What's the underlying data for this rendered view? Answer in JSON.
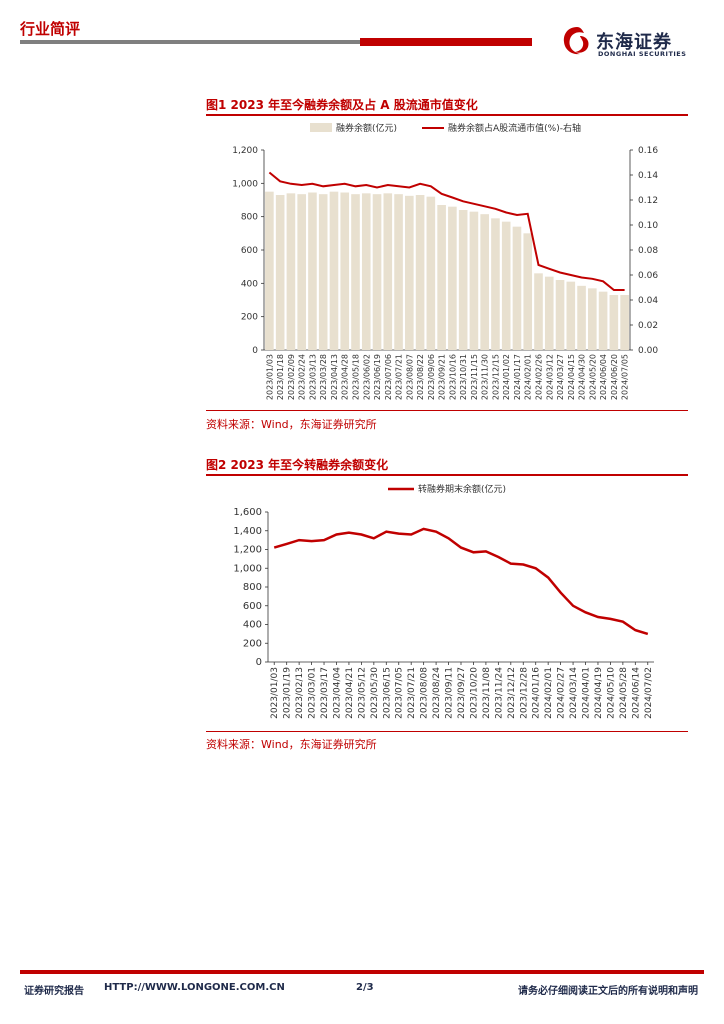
{
  "header": {
    "section": "行业简评",
    "logo_cn": "东海证券",
    "logo_en": "DONGHAI SECURITIES"
  },
  "figure1": {
    "title": "图1  2023 年至今融券余额及占 A 股流通市值变化",
    "source": "资料来源：Wind，东海证券研究所",
    "chart_data": {
      "type": "bar+line",
      "legend": [
        "融券余额(亿元)",
        "融券余额占A股流通市值(%)-右轴"
      ],
      "ylim_left": [
        0,
        1200
      ],
      "yticks_left": [
        "0",
        "200",
        "400",
        "600",
        "800",
        "1,000",
        "1,200"
      ],
      "ylim_right": [
        0,
        0.16
      ],
      "yticks_right": [
        "0.00",
        "0.02",
        "0.04",
        "0.06",
        "0.08",
        "0.10",
        "0.12",
        "0.14",
        "0.16"
      ],
      "x_ticks": [
        "2023/01/03",
        "2023/01/18",
        "2023/02/09",
        "2023/02/24",
        "2023/03/13",
        "2023/03/28",
        "2023/04/13",
        "2023/04/28",
        "2023/05/18",
        "2023/06/02",
        "2023/06/19",
        "2023/07/06",
        "2023/07/21",
        "2023/08/07",
        "2023/08/22",
        "2023/09/06",
        "2023/09/21",
        "2023/10/16",
        "2023/10/31",
        "2023/11/15",
        "2023/11/30",
        "2023/12/15",
        "2024/01/02",
        "2024/01/17",
        "2024/02/01",
        "2024/02/26",
        "2024/03/12",
        "2024/03/27",
        "2024/04/15",
        "2024/04/30",
        "2024/05/20",
        "2024/06/04",
        "2024/06/20",
        "2024/07/05"
      ],
      "series": [
        {
          "name": "融券余额(亿元)",
          "axis": "left",
          "values": [
            950,
            930,
            940,
            935,
            945,
            935,
            950,
            945,
            935,
            940,
            935,
            940,
            935,
            925,
            930,
            920,
            870,
            860,
            840,
            830,
            815,
            790,
            770,
            740,
            700,
            460,
            440,
            420,
            410,
            385,
            370,
            350,
            330,
            330
          ]
        },
        {
          "name": "融券余额占A股流通市值(%)-右轴",
          "axis": "right",
          "values": [
            0.142,
            0.135,
            0.133,
            0.132,
            0.133,
            0.131,
            0.132,
            0.133,
            0.131,
            0.132,
            0.13,
            0.132,
            0.131,
            0.13,
            0.133,
            0.131,
            0.125,
            0.122,
            0.119,
            0.117,
            0.115,
            0.113,
            0.11,
            0.108,
            0.109,
            0.068,
            0.065,
            0.062,
            0.06,
            0.058,
            0.057,
            0.055,
            0.048,
            0.048
          ]
        }
      ]
    }
  },
  "figure2": {
    "title": "图2  2023 年至今转融券余额变化",
    "source": "资料来源：Wind，东海证券研究所",
    "chart_data": {
      "type": "line",
      "legend": [
        "转融券期末余额(亿元)"
      ],
      "ylim": [
        0,
        1600
      ],
      "yticks": [
        "0",
        "200",
        "400",
        "600",
        "800",
        "1,000",
        "1,200",
        "1,400",
        "1,600"
      ],
      "x_ticks": [
        "2023/01/03",
        "2023/01/19",
        "2023/02/13",
        "2023/03/01",
        "2023/03/17",
        "2023/04/04",
        "2023/04/21",
        "2023/05/12",
        "2023/05/30",
        "2023/06/15",
        "2023/07/05",
        "2023/07/21",
        "2023/08/08",
        "2023/08/24",
        "2023/09/11",
        "2023/09/27",
        "2023/10/20",
        "2023/11/08",
        "2023/11/24",
        "2023/12/12",
        "2023/12/28",
        "2024/01/16",
        "2024/02/01",
        "2024/02/27",
        "2024/03/14",
        "2024/04/01",
        "2024/04/19",
        "2024/05/10",
        "2024/05/28",
        "2024/06/14",
        "2024/07/02"
      ],
      "series": [
        {
          "name": "转融券期末余额(亿元)",
          "values": [
            1220,
            1260,
            1300,
            1290,
            1300,
            1360,
            1380,
            1360,
            1320,
            1390,
            1370,
            1360,
            1420,
            1390,
            1320,
            1220,
            1170,
            1180,
            1120,
            1050,
            1040,
            1000,
            900,
            740,
            600,
            530,
            480,
            460,
            430,
            340,
            300
          ]
        }
      ]
    }
  },
  "footer": {
    "left": "证券研究报告",
    "url": "HTTP://WWW.LONGONE.COM.CN",
    "page": "2/3",
    "right": "请务必仔细阅读正文后的所有说明和声明"
  },
  "colors": {
    "accent": "#c00000",
    "bar": "#e8e0cf",
    "navy": "#1f2a4a"
  }
}
